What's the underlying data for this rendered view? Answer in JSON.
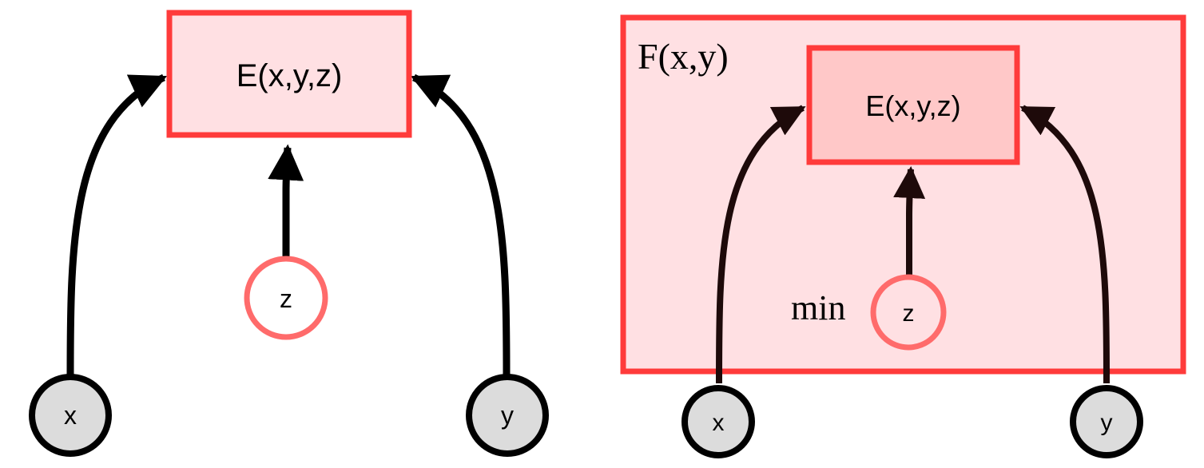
{
  "left_diagram": {
    "energy_box_label": "E(x,y,z)",
    "latent_label": "z",
    "input_x_label": "x",
    "input_y_label": "y"
  },
  "right_diagram": {
    "outer_box_label": "F(x,y)",
    "energy_box_label": "E(x,y,z)",
    "min_label": "min",
    "latent_label": "z",
    "input_x_label": "x",
    "input_y_label": "y"
  },
  "colors": {
    "box_border": "#ff3b3b",
    "box_fill_light": "#ffe0e3",
    "box_fill_inner": "#ffc8c8",
    "latent_border": "#ff6b6b",
    "node_fill": "#dcdcdc",
    "arrow": "#000000",
    "arrow_right": "#1e0a0a"
  }
}
